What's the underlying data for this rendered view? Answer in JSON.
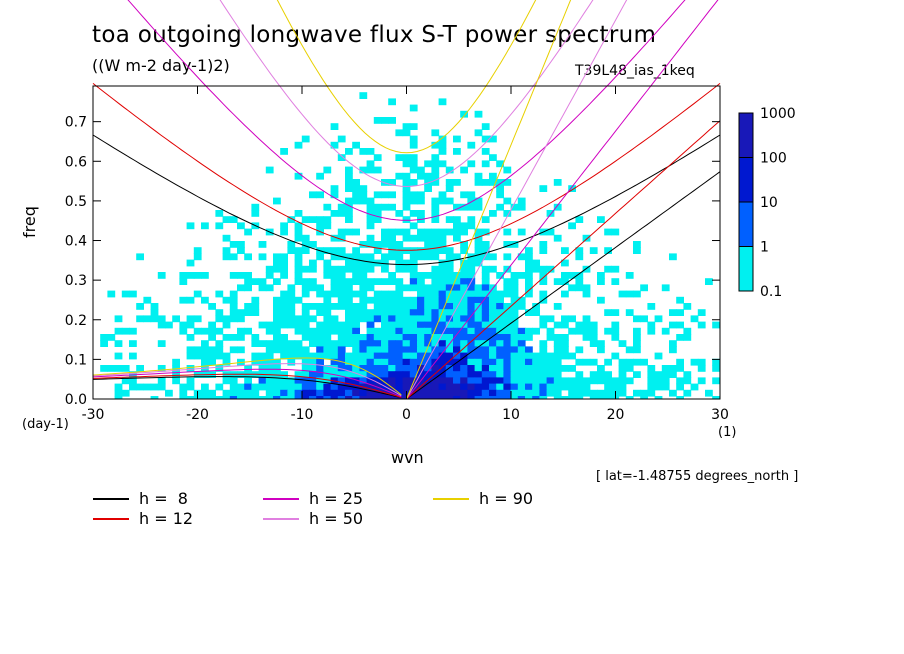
{
  "chart_data": {
    "type": "heatmap",
    "title": "toa outgoing longwave flux S-T power spectrum",
    "units": "((W m-2 day-1)2)",
    "experiment": "T39L48_ias_1keq",
    "xlabel": "wvn",
    "ylabel": "freq",
    "x_unit": "(1)",
    "y_unit": "(day-1)",
    "xlim": [
      -30,
      30
    ],
    "ylim": [
      0,
      0.79
    ],
    "xticks": [
      -30,
      -20,
      -10,
      0,
      10,
      20,
      30
    ],
    "xtick_labels": [
      "-30",
      "-20",
      "-10",
      "0",
      "10",
      "20",
      "30"
    ],
    "yticks": [
      0,
      0.1,
      0.2,
      0.3,
      0.4,
      0.5,
      0.6,
      0.7
    ],
    "ytick_labels": [
      "0.0",
      "0.1",
      "0.2",
      "0.3",
      "0.4",
      "0.5",
      "0.6",
      "0.7"
    ],
    "note": "[ lat=-1.48755 degrees_north ]",
    "colorbar": {
      "levels": [
        "0.1",
        "1",
        "10",
        "100",
        "1000"
      ],
      "colors": [
        "#00f0f0",
        "#0060ff",
        "#0018d0",
        "#1818b8",
        "#5010a8"
      ]
    },
    "dispersion_curves": [
      {
        "label": "h =  8",
        "h": 8,
        "color": "#000000"
      },
      {
        "label": "h = 12",
        "h": 12,
        "color": "#e00000"
      },
      {
        "label": "h = 25",
        "h": 25,
        "color": "#d000c0"
      },
      {
        "label": "h = 50",
        "h": 50,
        "color": "#e080e0"
      },
      {
        "label": "h = 90",
        "h": 90,
        "color": "#e8d000"
      }
    ]
  }
}
